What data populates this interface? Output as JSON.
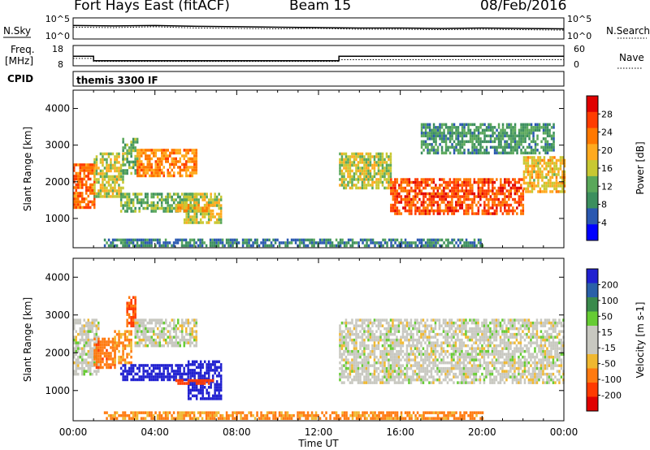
{
  "header": {
    "station": "Fort Hays East (fitACF)",
    "beam": "Beam 15",
    "date": "08/Feb/2016"
  },
  "side_labels": {
    "nsky": "N.Sky",
    "nsearch": "N.Search",
    "freq_line1": "Freq.",
    "freq_line2": "[MHz]",
    "nave": "Nave",
    "cpid": "CPID",
    "nsky_ticks": [
      "10^5",
      "10^0"
    ],
    "freq_ticks": [
      "18",
      "8"
    ],
    "nave_ticks": [
      "60",
      "0"
    ],
    "cpid_text": "themis 3300 IF"
  },
  "colors": {
    "power_scale": [
      "#0000ff",
      "#2a58b0",
      "#3c8f5e",
      "#5aa85a",
      "#c8c832",
      "#ffaa1e",
      "#ff7800",
      "#ff3c00",
      "#e00000"
    ],
    "velocity_scale": [
      "#2020d0",
      "#2a60a8",
      "#3a8a4c",
      "#66cc33",
      "#c8c8c0",
      "#c8c8c0",
      "#f0b830",
      "#ff7a10",
      "#ff3a00",
      "#e00000"
    ],
    "ground_scatter": "#c8c8c0"
  },
  "chart_data": [
    {
      "type": "line",
      "title": "N.Sky / N.Search",
      "ylabel": "N.Sky",
      "y2label": "N.Search",
      "yticks": [
        "10^5",
        "10^0"
      ],
      "y2ticks": [
        "10^5",
        "10^0"
      ],
      "x": [
        0,
        2,
        4,
        6,
        8,
        10,
        12,
        14,
        16,
        18,
        20,
        22,
        24
      ],
      "series": [
        {
          "name": "N.Sky",
          "values": [
            3.2,
            3.1,
            3.2,
            3.0,
            2.9,
            2.8,
            2.7,
            2.6,
            2.6,
            2.5,
            2.6,
            2.5,
            2.4
          ]
        },
        {
          "name": "N.Search",
          "values": [
            2.8,
            2.7,
            2.9,
            2.6,
            2.5,
            2.4,
            2.5,
            2.3,
            2.3,
            2.2,
            2.3,
            2.2,
            2.1
          ]
        }
      ]
    },
    {
      "type": "line",
      "title": "Freq / Nave",
      "ylabel": "Freq. [MHz]",
      "y2label": "Nave",
      "yticks": [
        "18",
        "8"
      ],
      "y2ticks": [
        "60",
        "0"
      ],
      "series": [
        {
          "name": "Freq.",
          "x": [
            0,
            1.0,
            1.0,
            13.0,
            13.0,
            24
          ],
          "values": [
            12.7,
            12.7,
            10.5,
            10.5,
            12.7,
            12.7
          ]
        },
        {
          "name": "Nave",
          "x": [
            0,
            1.0,
            1.0,
            13.0,
            13.0,
            24
          ],
          "values": [
            22,
            22,
            13,
            13,
            18,
            18
          ]
        }
      ]
    },
    {
      "type": "heatmap",
      "title": "Power",
      "xlabel": "",
      "ylabel": "Slant Range [km]",
      "xlim": [
        0,
        24
      ],
      "ylim": [
        200,
        4500
      ],
      "yticks": [
        "1000",
        "2000",
        "3000",
        "4000"
      ],
      "colorbar_label": "Power [dB]",
      "colorbar_ticks": [
        "4",
        "8",
        "12",
        "16",
        "20",
        "24",
        "28"
      ],
      "clim": [
        0,
        32
      ],
      "regions": [
        {
          "t0": 0.0,
          "t1": 1.0,
          "r0": 1300,
          "r1": 2500,
          "p": 24
        },
        {
          "t0": 1.0,
          "t1": 2.4,
          "r0": 1600,
          "r1": 2800,
          "p": 16
        },
        {
          "t0": 2.4,
          "t1": 3.1,
          "r0": 2200,
          "r1": 3200,
          "p": 12
        },
        {
          "t0": 3.1,
          "t1": 6.0,
          "r0": 2200,
          "r1": 2900,
          "p": 22
        },
        {
          "t0": 2.3,
          "t1": 6.0,
          "r0": 1200,
          "r1": 1700,
          "p": 12
        },
        {
          "t0": 5.4,
          "t1": 7.2,
          "r0": 900,
          "r1": 1700,
          "p": 16
        },
        {
          "t0": 5.0,
          "t1": 6.8,
          "r0": 1200,
          "r1": 1400,
          "p": 20
        },
        {
          "t0": 13.0,
          "t1": 15.5,
          "r0": 1800,
          "r1": 2800,
          "p": 16
        },
        {
          "t0": 15.5,
          "t1": 22.0,
          "r0": 1100,
          "r1": 2100,
          "p": 26
        },
        {
          "t0": 22.0,
          "t1": 24.0,
          "r0": 1700,
          "r1": 2700,
          "p": 18
        },
        {
          "t0": 17.0,
          "t1": 23.5,
          "r0": 2800,
          "r1": 3600,
          "p": 10
        },
        {
          "t0": 1.5,
          "t1": 20.0,
          "r0": 250,
          "r1": 450,
          "p": 8
        }
      ]
    },
    {
      "type": "heatmap",
      "title": "Velocity",
      "xlabel": "Time UT",
      "ylabel": "Slant Range [km]",
      "xlim": [
        0,
        24
      ],
      "ylim": [
        200,
        4500
      ],
      "xticks": [
        "00:00",
        "04:00",
        "08:00",
        "12:00",
        "16:00",
        "20:00",
        "00:00"
      ],
      "yticks": [
        "1000",
        "2000",
        "3000",
        "4000"
      ],
      "colorbar_label": "Velocity [m s-1]",
      "colorbar_ticks": [
        "200",
        "100",
        "50",
        "15",
        "-15",
        "-50",
        "-100",
        "-200"
      ],
      "clim": [
        -250,
        250
      ],
      "regions": [
        {
          "t0": 0.0,
          "t1": 1.2,
          "r0": 1400,
          "r1": 2900,
          "v": 0
        },
        {
          "t0": 1.0,
          "t1": 2.0,
          "r0": 1600,
          "r1": 2400,
          "v": -60
        },
        {
          "t0": 2.0,
          "t1": 2.8,
          "r0": 1700,
          "r1": 2600,
          "v": -40
        },
        {
          "t0": 2.6,
          "t1": 3.0,
          "r0": 2700,
          "r1": 3500,
          "v": -80
        },
        {
          "t0": 3.0,
          "t1": 6.0,
          "r0": 2200,
          "r1": 2900,
          "v": 0
        },
        {
          "t0": 2.3,
          "t1": 5.6,
          "r0": 1300,
          "r1": 1700,
          "v": 220
        },
        {
          "t0": 5.6,
          "t1": 7.2,
          "r0": 800,
          "r1": 1800,
          "v": 220
        },
        {
          "t0": 5.0,
          "t1": 6.8,
          "r0": 1150,
          "r1": 1300,
          "v": -120
        },
        {
          "t0": 13.0,
          "t1": 24.0,
          "r0": 1200,
          "r1": 2900,
          "v": 0
        },
        {
          "t0": 1.5,
          "t1": 20.0,
          "r0": 250,
          "r1": 450,
          "v": -40
        }
      ]
    }
  ]
}
